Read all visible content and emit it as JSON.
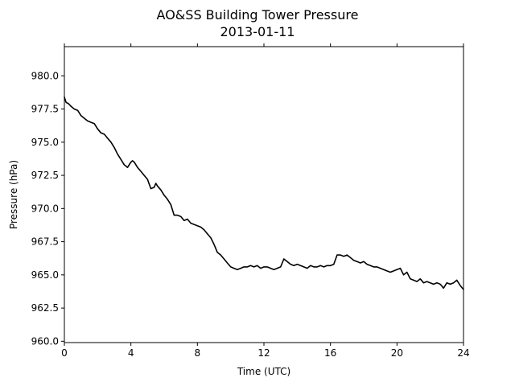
{
  "chart_data": {
    "type": "line",
    "title": "AO&SS Building Tower Pressure",
    "subtitle": "2013-01-11",
    "xlabel": "Time (UTC)",
    "ylabel": "Pressure (hPa)",
    "xlim": [
      0,
      24
    ],
    "ylim": [
      959.9,
      982.2
    ],
    "xticks": [
      0,
      4,
      8,
      12,
      16,
      20,
      24
    ],
    "xtick_labels": [
      "0",
      "4",
      "8",
      "12",
      "16",
      "20",
      "24"
    ],
    "yticks": [
      960.0,
      962.5,
      965.0,
      967.5,
      970.0,
      972.5,
      975.0,
      977.5,
      980.0
    ],
    "ytick_labels": [
      "960.0",
      "962.5",
      "965.0",
      "967.5",
      "970.0",
      "972.5",
      "975.0",
      "977.5",
      "980.0"
    ],
    "grid": false,
    "series": [
      {
        "color": "#000000",
        "x": [
          0.0,
          0.1,
          0.25,
          0.4,
          0.6,
          0.8,
          1.0,
          1.2,
          1.4,
          1.6,
          1.8,
          2.0,
          2.2,
          2.4,
          2.6,
          2.8,
          3.0,
          3.2,
          3.4,
          3.6,
          3.8,
          4.0,
          4.1,
          4.2,
          4.4,
          4.6,
          4.8,
          5.0,
          5.2,
          5.4,
          5.5,
          5.6,
          5.8,
          6.0,
          6.2,
          6.4,
          6.5,
          6.6,
          6.8,
          7.0,
          7.2,
          7.4,
          7.6,
          7.8,
          8.0,
          8.2,
          8.4,
          8.6,
          8.8,
          9.0,
          9.2,
          9.4,
          9.6,
          9.8,
          10.0,
          10.2,
          10.4,
          10.6,
          10.8,
          11.0,
          11.2,
          11.4,
          11.6,
          11.8,
          12.0,
          12.2,
          12.4,
          12.6,
          12.8,
          13.0,
          13.2,
          13.4,
          13.6,
          13.8,
          14.0,
          14.2,
          14.4,
          14.6,
          14.8,
          15.0,
          15.2,
          15.4,
          15.6,
          15.8,
          16.0,
          16.2,
          16.4,
          16.6,
          16.8,
          17.0,
          17.2,
          17.4,
          17.6,
          17.8,
          18.0,
          18.2,
          18.4,
          18.6,
          18.8,
          19.0,
          19.2,
          19.4,
          19.6,
          19.8,
          20.0,
          20.2,
          20.4,
          20.6,
          20.8,
          21.0,
          21.2,
          21.4,
          21.6,
          21.8,
          22.0,
          22.2,
          22.4,
          22.6,
          22.8,
          23.0,
          23.2,
          23.4,
          23.6,
          23.8,
          24.0
        ],
        "y": [
          978.4,
          978.0,
          977.9,
          977.7,
          977.5,
          977.4,
          977.0,
          976.8,
          976.6,
          976.5,
          976.4,
          976.0,
          975.7,
          975.6,
          975.3,
          975.0,
          974.6,
          974.1,
          973.7,
          973.3,
          973.1,
          973.5,
          973.6,
          973.5,
          973.1,
          972.8,
          972.5,
          972.2,
          971.5,
          971.6,
          971.9,
          971.7,
          971.4,
          971.0,
          970.7,
          970.3,
          969.9,
          969.5,
          969.5,
          969.4,
          969.1,
          969.2,
          968.9,
          968.8,
          968.7,
          968.6,
          968.4,
          968.1,
          967.8,
          967.3,
          966.7,
          966.5,
          966.2,
          965.9,
          965.6,
          965.5,
          965.4,
          965.5,
          965.6,
          965.6,
          965.7,
          965.6,
          965.7,
          965.5,
          965.6,
          965.6,
          965.5,
          965.4,
          965.5,
          965.6,
          966.2,
          966.0,
          965.8,
          965.7,
          965.8,
          965.7,
          965.6,
          965.5,
          965.7,
          965.6,
          965.6,
          965.7,
          965.6,
          965.7,
          965.7,
          965.8,
          966.5,
          966.5,
          966.4,
          966.5,
          966.3,
          966.1,
          966.0,
          965.9,
          966.0,
          965.8,
          965.7,
          965.6,
          965.6,
          965.5,
          965.4,
          965.3,
          965.2,
          965.3,
          965.4,
          965.5,
          965.0,
          965.2,
          964.7,
          964.6,
          964.5,
          964.7,
          964.4,
          964.5,
          964.4,
          964.3,
          964.4,
          964.3,
          964.0,
          964.4,
          964.3,
          964.4,
          964.6,
          964.2,
          963.9
        ]
      }
    ]
  }
}
